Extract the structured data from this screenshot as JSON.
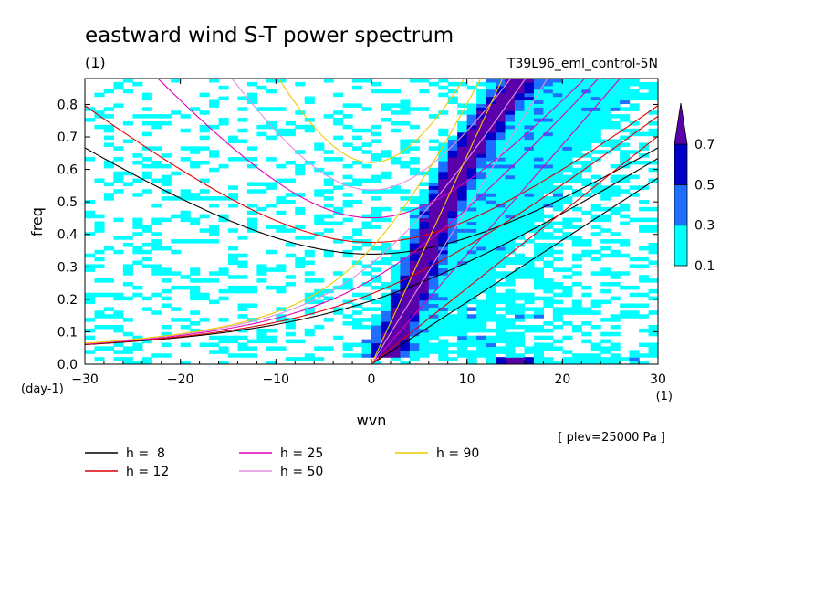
{
  "chart_data": {
    "type": "heatmap",
    "title": "eastward wind S-T power spectrum",
    "subtitle_left": "(1)",
    "subtitle_right": "T39L96_eml_control-5N",
    "xlabel": "wvn",
    "xunit": "(1)",
    "ylabel": "freq",
    "yunit": "(day-1)",
    "xlim": [
      -30,
      30
    ],
    "ylim": [
      0.0,
      0.88
    ],
    "xticks": [
      -30,
      -20,
      -10,
      0,
      10,
      20,
      30
    ],
    "yticks": [
      0.0,
      0.1,
      0.2,
      0.3,
      0.4,
      0.5,
      0.6,
      0.7,
      0.8
    ],
    "annotation": "[ plev=25000 Pa ]",
    "colorbar": {
      "levels": [
        0.1,
        0.3,
        0.5,
        0.7
      ],
      "colors": [
        "#00ffff",
        "#1e6eff",
        "#0000c8",
        "#5a00aa"
      ]
    },
    "dispersion_curves": [
      {
        "name": "h =  8",
        "h": 8,
        "color": "#000000"
      },
      {
        "name": "h = 12",
        "h": 12,
        "color": "#e00000"
      },
      {
        "name": "h = 25",
        "h": 25,
        "color": "#e000b4"
      },
      {
        "name": "h = 50",
        "h": 50,
        "color": "#e090e0"
      },
      {
        "name": "h = 90",
        "h": 90,
        "color": "#f0c800"
      }
    ],
    "power_features": [
      {
        "description": "kelvin ridge",
        "x": [
          1.5,
          2.5,
          3.5,
          4.5,
          5.5,
          6.5,
          7.5,
          9,
          11,
          13,
          15
        ],
        "y": [
          0.02,
          0.1,
          0.17,
          0.24,
          0.33,
          0.42,
          0.5,
          0.6,
          0.7,
          0.78,
          0.86
        ],
        "level": 0.7
      }
    ]
  }
}
